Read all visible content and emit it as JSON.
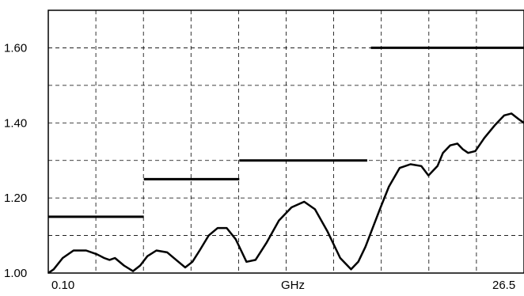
{
  "chart_data": {
    "type": "line",
    "title": "",
    "xlabel": "GHz",
    "ylabel": "",
    "x_start_label": "0.10",
    "x_end_label": "26.5",
    "x_range": [
      0.1,
      26.5
    ],
    "ylim": [
      1.0,
      1.7
    ],
    "yticks": [
      1.0,
      1.2,
      1.4,
      1.6
    ],
    "ytick_labels": [
      "1.00",
      "1.20",
      "1.40",
      "1.60"
    ],
    "grid": true,
    "grid_style": "dashed",
    "x_grid_divisions": 10,
    "y_grid_step": 0.1,
    "colors": {
      "line": "#000000",
      "grid": "#000000",
      "frame": "#000000"
    },
    "limit_lines": [
      {
        "x": [
          0.1,
          5.4
        ],
        "y": 1.15
      },
      {
        "x": [
          5.4,
          10.7
        ],
        "y": 1.25
      },
      {
        "x": [
          10.7,
          17.8
        ],
        "y": 1.3
      },
      {
        "x": [
          18.0,
          26.5
        ],
        "y": 1.6
      }
    ],
    "series": [
      {
        "x": [
          0.1,
          0.4,
          0.9,
          1.5,
          2.2,
          2.8,
          3.2,
          3.5,
          3.8,
          4.3,
          4.8,
          5.2,
          5.6,
          6.1,
          6.7,
          7.2,
          7.7,
          8.1,
          8.5,
          9.0,
          9.5,
          10.0,
          10.5,
          10.8,
          11.1,
          11.6,
          12.2,
          12.9,
          13.6,
          14.3,
          14.9,
          15.6,
          16.3,
          16.9,
          17.3,
          17.7,
          18.1,
          18.5,
          19.0,
          19.6,
          20.2,
          20.8,
          21.2,
          21.7,
          22.0,
          22.4,
          22.8,
          23.1,
          23.4,
          23.8,
          24.3,
          24.9,
          25.4,
          25.8,
          26.2,
          26.5
        ],
        "y": [
          1.0,
          1.01,
          1.04,
          1.06,
          1.06,
          1.05,
          1.04,
          1.035,
          1.04,
          1.02,
          1.005,
          1.02,
          1.045,
          1.06,
          1.055,
          1.035,
          1.015,
          1.03,
          1.06,
          1.1,
          1.12,
          1.12,
          1.09,
          1.06,
          1.03,
          1.035,
          1.08,
          1.14,
          1.175,
          1.19,
          1.17,
          1.11,
          1.04,
          1.01,
          1.03,
          1.07,
          1.12,
          1.17,
          1.23,
          1.28,
          1.29,
          1.285,
          1.26,
          1.285,
          1.32,
          1.34,
          1.345,
          1.33,
          1.32,
          1.325,
          1.36,
          1.395,
          1.42,
          1.425,
          1.41,
          1.4
        ]
      }
    ]
  }
}
